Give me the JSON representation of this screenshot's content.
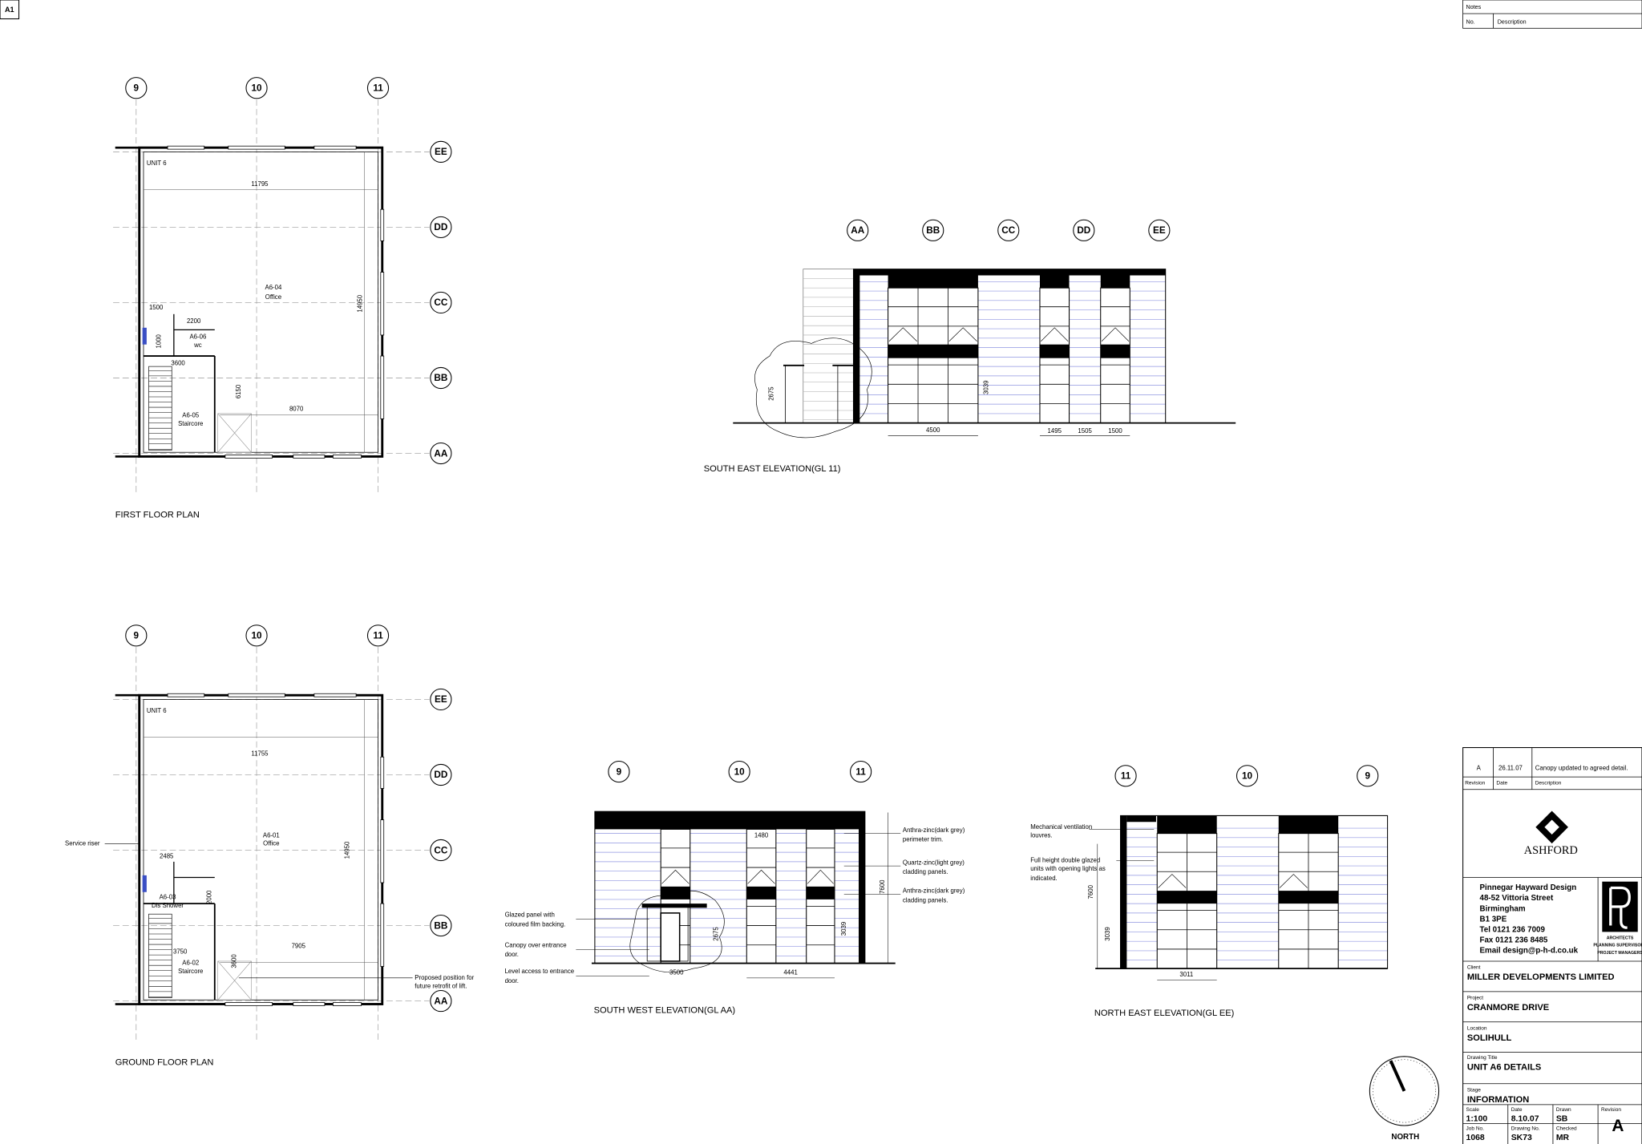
{
  "sheet_label": "A1",
  "notes": {
    "title": "Notes",
    "no": "No.",
    "description": "Description"
  },
  "first_floor_plan": {
    "title": "FIRST FLOOR PLAN",
    "grid_columns": [
      "9",
      "10",
      "11"
    ],
    "grid_rows": [
      "EE",
      "DD",
      "CC",
      "BB",
      "AA"
    ],
    "labels": {
      "unit": "UNIT 6",
      "office_id": "A6-04",
      "office": "Office",
      "wc_id": "A6-06",
      "wc": "wc",
      "stair_id": "A6-05",
      "stair": "Staircore"
    },
    "dimensions": [
      "11795",
      "1500",
      "2200",
      "1000",
      "3600",
      "14950",
      "6150",
      "8070"
    ]
  },
  "ground_floor_plan": {
    "title": "GROUND FLOOR PLAN",
    "grid_columns": [
      "9",
      "10",
      "11"
    ],
    "grid_rows": [
      "EE",
      "DD",
      "CC",
      "BB",
      "AA"
    ],
    "labels": {
      "unit": "UNIT 6",
      "office_id": "A6-01",
      "office": "Office",
      "service_riser": "Service riser",
      "shower_id": "A6-03",
      "shower": "Dis Shower",
      "stair_id": "A6-02",
      "stair": "Staircore",
      "lift_note": [
        "Proposed position for",
        "future retrofit of lift."
      ]
    },
    "dimensions": [
      "11755",
      "2485",
      "2000",
      "14950",
      "3750",
      "7905",
      "3600"
    ]
  },
  "south_east_elevation": {
    "title": "SOUTH EAST ELEVATION(GL 11)",
    "grid": [
      "AA",
      "BB",
      "CC",
      "DD",
      "EE"
    ],
    "dimensions": [
      "2675",
      "3039",
      "4500",
      "1495",
      "1505",
      "1500"
    ]
  },
  "south_west_elevation": {
    "title": "SOUTH WEST ELEVATION(GL AA)",
    "grid": [
      "9",
      "10",
      "11"
    ],
    "dimensions": [
      "1480",
      "7600",
      "3039",
      "2675",
      "3500",
      "4441"
    ],
    "annotations": {
      "perimeter_trim": [
        "Anthra-zinc(dark grey)",
        "perimeter trim."
      ],
      "light_cladding": [
        "Quartz-zinc(light grey)",
        "cladding panels."
      ],
      "dark_cladding": [
        "Anthra-zinc(dark grey)",
        "cladding panels."
      ],
      "glazed_panel": [
        "Glazed panel with",
        "coloured film backing."
      ],
      "canopy": [
        "Canopy over entrance",
        "door."
      ],
      "level_access": [
        "Level access to entrance",
        "door."
      ]
    }
  },
  "north_east_elevation": {
    "title": "NORTH EAST ELEVATION(GL EE)",
    "grid": [
      "11",
      "10",
      "9"
    ],
    "dimensions": [
      "7600",
      "3039",
      "3011"
    ],
    "annotations": {
      "louvres": [
        "Mechanical ventilation",
        "louvres."
      ],
      "glazing": [
        "Full height double glazed",
        "units with opening lights as",
        "indicated."
      ]
    }
  },
  "north": "NORTH",
  "title_block": {
    "revision_row": {
      "revision": "A",
      "date": "26.11.07",
      "description": "Canopy updated to agreed detail."
    },
    "revision_headers": {
      "revision": "Revision",
      "date": "Date",
      "description": "Description"
    },
    "client_logo": "ASHFORD",
    "architect": [
      "Pinnegar Hayward Design",
      "48-52 Vittoria Street",
      "Birmingham",
      "B1 3PE",
      "Tel 0121 236 7009",
      "Fax 0121 236 8485",
      "Email design@p-h-d.co.uk"
    ],
    "architect_roles": [
      "ARCHITECTS",
      "PLANNING SUPERVISORS",
      "PROJECT MANAGERS"
    ],
    "client": {
      "label": "Client",
      "value": "MILLER DEVELOPMENTS LIMITED"
    },
    "project": {
      "label": "Project",
      "value": "CRANMORE DRIVE"
    },
    "location": {
      "label": "Location",
      "value": "SOLIHULL"
    },
    "drawing_title": {
      "label": "Drawing Title",
      "value": "UNIT A6 DETAILS"
    },
    "stage": {
      "label": "Stage",
      "value": "INFORMATION"
    },
    "scale": {
      "label": "Scale",
      "value": "1:100"
    },
    "date": {
      "label": "Date",
      "value": "8.10.07"
    },
    "drawn": {
      "label": "Drawn",
      "value": "SB"
    },
    "revision": {
      "label": "Revision",
      "value": "A"
    },
    "job_no": {
      "label": "Job No.",
      "value": "1068"
    },
    "drawing_no": {
      "label": "Drawing No.",
      "value": "SK73"
    },
    "checked": {
      "label": "Checked",
      "value": "MR"
    }
  }
}
